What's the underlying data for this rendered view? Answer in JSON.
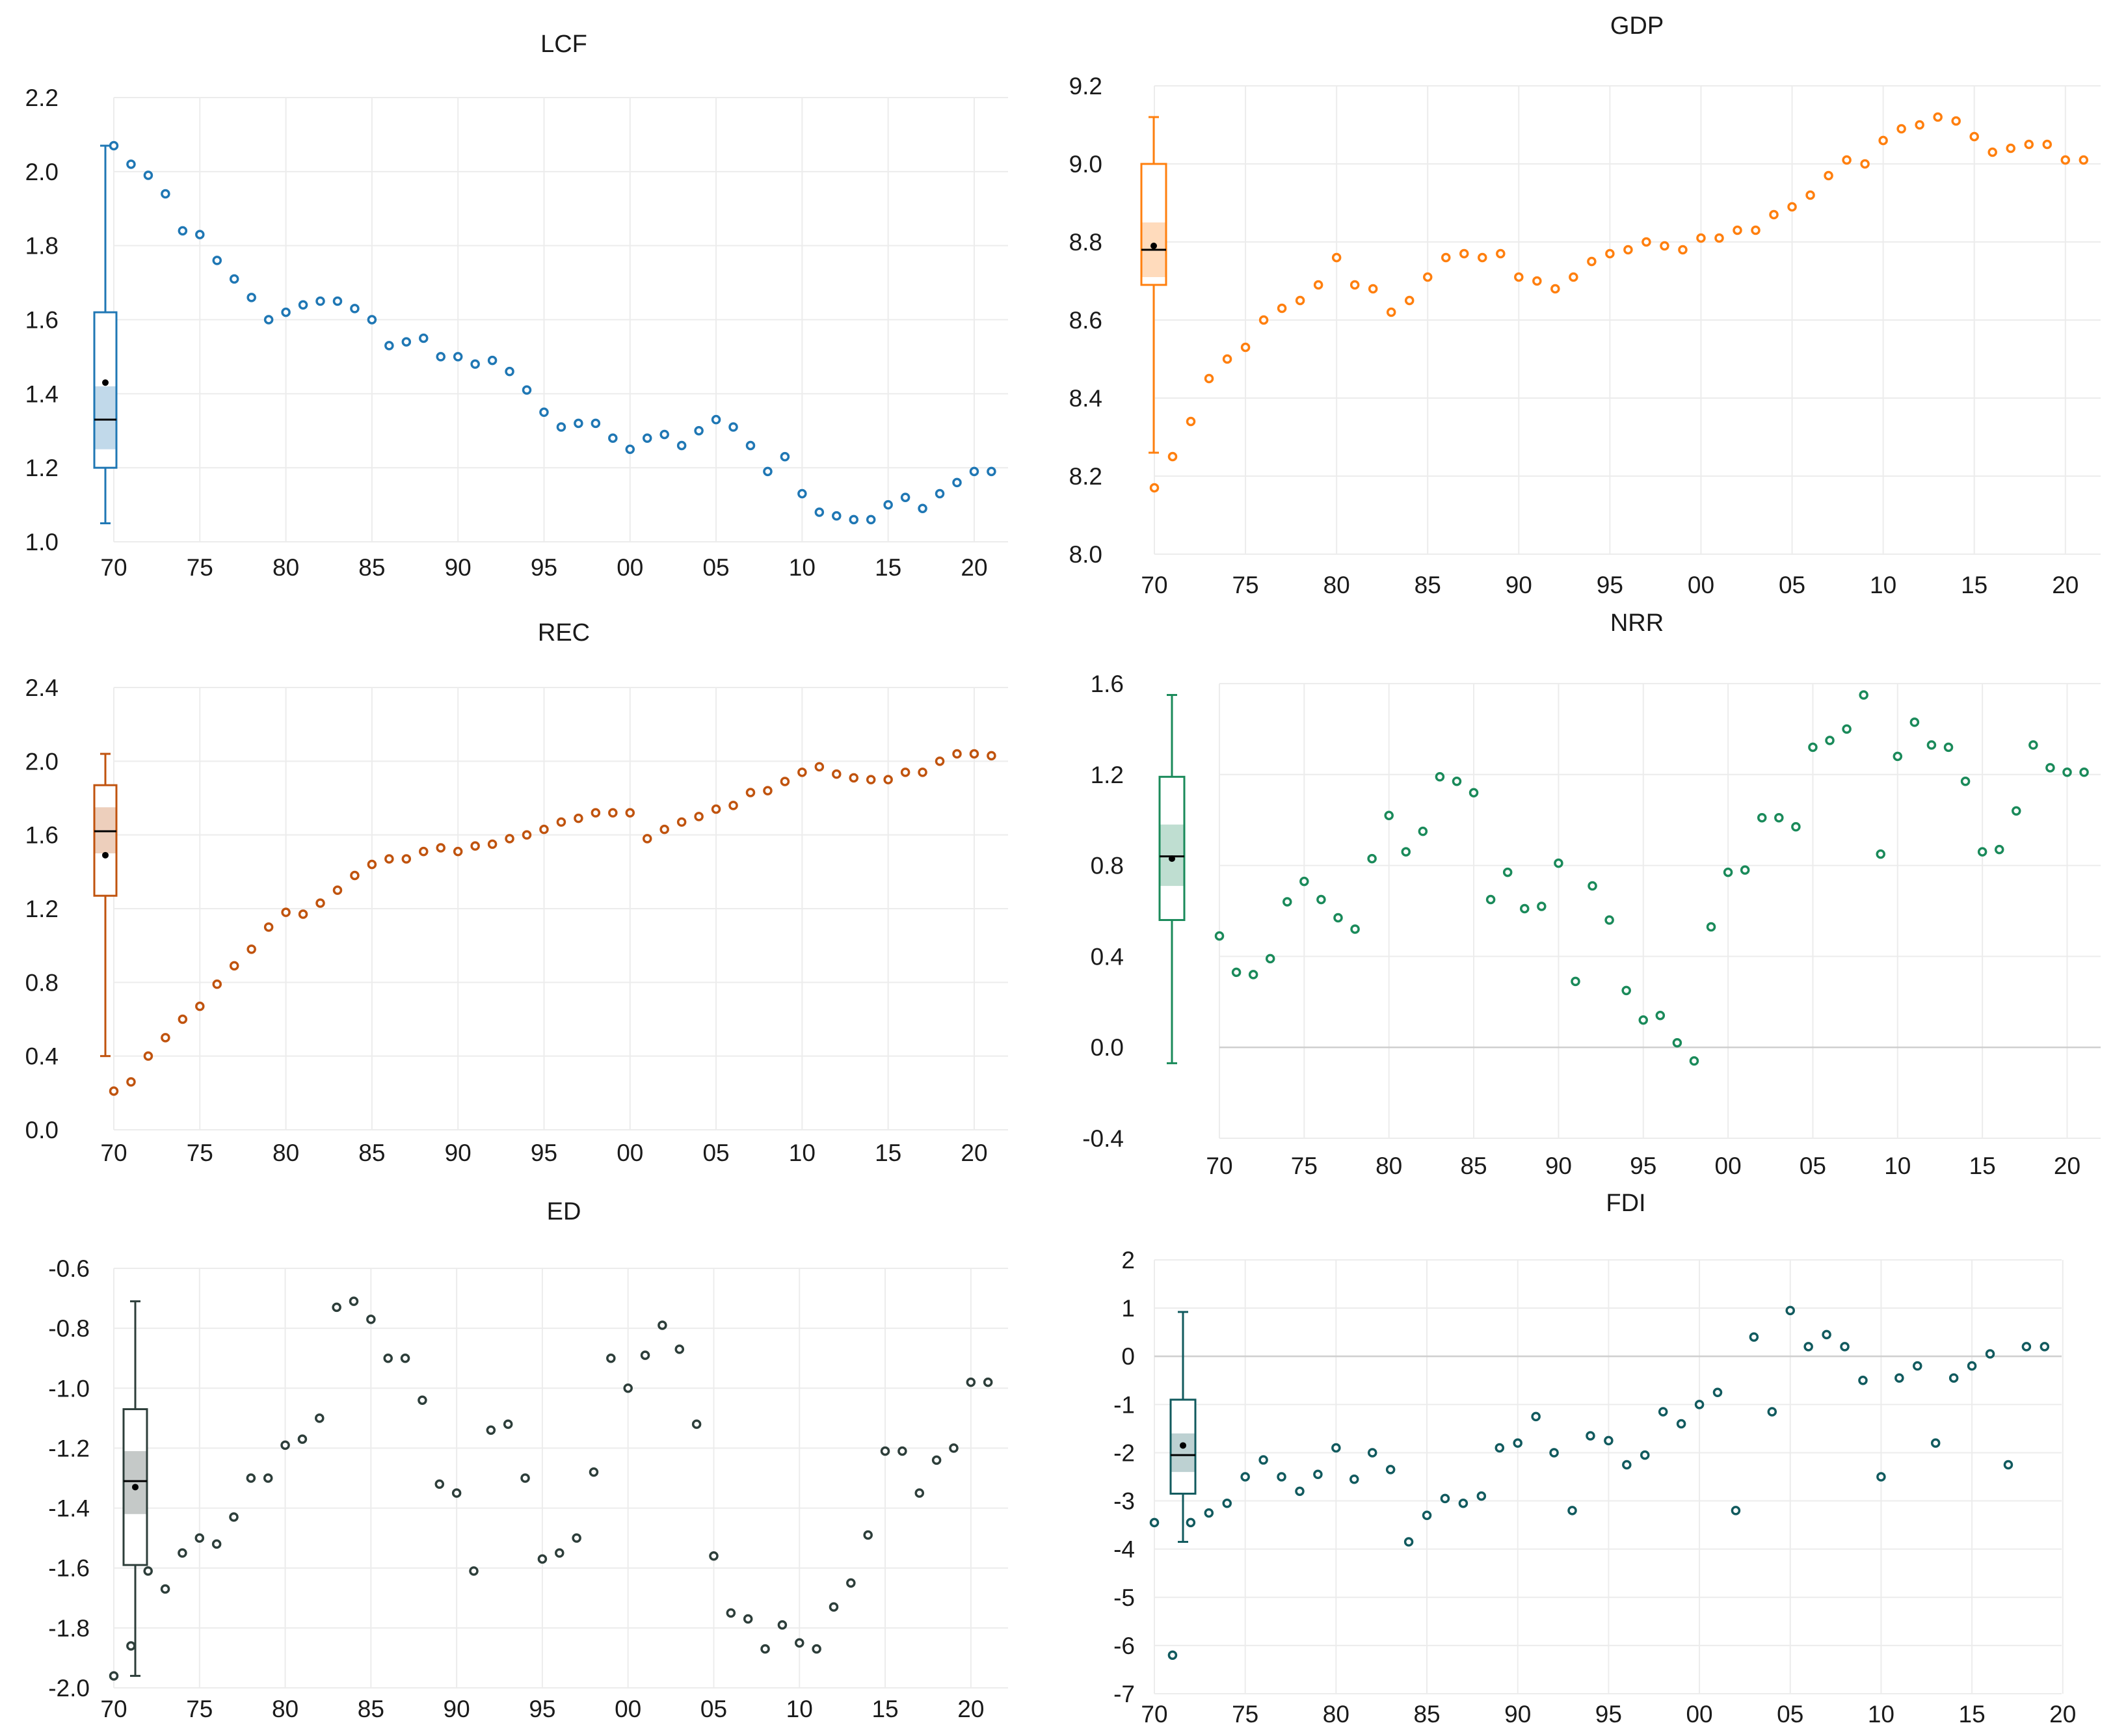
{
  "chart_data": [
    {
      "type": "scatter",
      "title": "LCF",
      "color": "#1f77b4",
      "ylim": [
        1.0,
        2.2
      ],
      "yticks": [
        "1.0",
        "1.2",
        "1.4",
        "1.6",
        "1.8",
        "2.0",
        "2.2"
      ],
      "xticks": [
        "70",
        "75",
        "80",
        "85",
        "90",
        "95",
        "00",
        "05",
        "10",
        "15",
        "20"
      ],
      "zero_line": false,
      "box": {
        "min": 1.05,
        "q1": 1.2,
        "median": 1.33,
        "q3": 1.62,
        "max": 2.07,
        "mean": 1.43,
        "ci": [
          1.25,
          1.42
        ]
      },
      "x": [
        1970,
        1971,
        1972,
        1973,
        1974,
        1975,
        1976,
        1977,
        1978,
        1979,
        1980,
        1981,
        1982,
        1983,
        1984,
        1985,
        1986,
        1987,
        1988,
        1989,
        1990,
        1991,
        1992,
        1993,
        1994,
        1995,
        1996,
        1997,
        1998,
        1999,
        2000,
        2001,
        2002,
        2003,
        2004,
        2005,
        2006,
        2007,
        2008,
        2009,
        2010,
        2011,
        2012,
        2013,
        2014,
        2015,
        2016,
        2017,
        2018,
        2019,
        2020,
        2021
      ],
      "y": [
        2.07,
        2.02,
        1.99,
        1.94,
        1.84,
        1.83,
        1.76,
        1.71,
        1.66,
        1.6,
        1.62,
        1.64,
        1.65,
        1.65,
        1.63,
        1.6,
        1.53,
        1.54,
        1.55,
        1.5,
        1.5,
        1.48,
        1.49,
        1.46,
        1.41,
        1.35,
        1.31,
        1.32,
        1.32,
        1.28,
        1.25,
        1.28,
        1.29,
        1.26,
        1.3,
        1.33,
        1.31,
        1.26,
        1.19,
        1.23,
        1.13,
        1.08,
        1.07,
        1.06,
        1.06,
        1.1,
        1.12,
        1.09,
        1.13,
        1.16,
        1.19,
        1.19
      ]
    },
    {
      "type": "scatter",
      "title": "GDP",
      "color": "#ff7f0e",
      "ylim": [
        8.0,
        9.2
      ],
      "yticks": [
        "8.0",
        "8.2",
        "8.4",
        "8.6",
        "8.8",
        "9.0",
        "9.2"
      ],
      "xticks": [
        "70",
        "75",
        "80",
        "85",
        "90",
        "95",
        "00",
        "05",
        "10",
        "15",
        "20"
      ],
      "zero_line": false,
      "box": {
        "min": 8.26,
        "q1": 8.69,
        "median": 8.78,
        "q3": 9.0,
        "max": 9.12,
        "mean": 8.79,
        "ci": [
          8.71,
          8.85
        ]
      },
      "x": [
        1970,
        1971,
        1972,
        1973,
        1974,
        1975,
        1976,
        1977,
        1978,
        1979,
        1980,
        1981,
        1982,
        1983,
        1984,
        1985,
        1986,
        1987,
        1988,
        1989,
        1990,
        1991,
        1992,
        1993,
        1994,
        1995,
        1996,
        1997,
        1998,
        1999,
        2000,
        2001,
        2002,
        2003,
        2004,
        2005,
        2006,
        2007,
        2008,
        2009,
        2010,
        2011,
        2012,
        2013,
        2014,
        2015,
        2016,
        2017,
        2018,
        2019,
        2020,
        2021
      ],
      "y": [
        8.17,
        8.25,
        8.34,
        8.45,
        8.5,
        8.53,
        8.6,
        8.63,
        8.65,
        8.69,
        8.76,
        8.69,
        8.68,
        8.62,
        8.65,
        8.71,
        8.76,
        8.77,
        8.76,
        8.77,
        8.71,
        8.7,
        8.68,
        8.71,
        8.75,
        8.77,
        8.78,
        8.8,
        8.79,
        8.78,
        8.81,
        8.81,
        8.83,
        8.83,
        8.87,
        8.89,
        8.92,
        8.97,
        9.01,
        9.0,
        9.06,
        9.09,
        9.1,
        9.12,
        9.11,
        9.07,
        9.03,
        9.04,
        9.05,
        9.05,
        9.01,
        9.01
      ]
    },
    {
      "type": "scatter",
      "title": "REC",
      "color": "#c0530e",
      "ylim": [
        0.0,
        2.4
      ],
      "yticks": [
        "0.0",
        "0.4",
        "0.8",
        "1.2",
        "1.6",
        "2.0",
        "2.4"
      ],
      "xticks": [
        "70",
        "75",
        "80",
        "85",
        "90",
        "95",
        "00",
        "05",
        "10",
        "15",
        "20"
      ],
      "zero_line": false,
      "box": {
        "min": 0.4,
        "q1": 1.27,
        "median": 1.62,
        "q3": 1.87,
        "max": 2.04,
        "mean": 1.49,
        "ci": [
          1.5,
          1.75
        ]
      },
      "x": [
        1970,
        1971,
        1972,
        1973,
        1974,
        1975,
        1976,
        1977,
        1978,
        1979,
        1980,
        1981,
        1982,
        1983,
        1984,
        1985,
        1986,
        1987,
        1988,
        1989,
        1990,
        1991,
        1992,
        1993,
        1994,
        1995,
        1996,
        1997,
        1998,
        1999,
        2000,
        2001,
        2002,
        2003,
        2004,
        2005,
        2006,
        2007,
        2008,
        2009,
        2010,
        2011,
        2012,
        2013,
        2014,
        2015,
        2016,
        2017,
        2018,
        2019,
        2020,
        2021
      ],
      "y": [
        0.21,
        0.26,
        0.4,
        0.5,
        0.6,
        0.67,
        0.79,
        0.89,
        0.98,
        1.1,
        1.18,
        1.17,
        1.23,
        1.3,
        1.38,
        1.44,
        1.47,
        1.47,
        1.51,
        1.53,
        1.51,
        1.54,
        1.55,
        1.58,
        1.6,
        1.63,
        1.67,
        1.69,
        1.72,
        1.72,
        1.72,
        1.58,
        1.63,
        1.67,
        1.7,
        1.74,
        1.76,
        1.83,
        1.84,
        1.89,
        1.94,
        1.97,
        1.93,
        1.91,
        1.9,
        1.9,
        1.94,
        1.94,
        2.0,
        2.04,
        2.04,
        2.03
      ]
    },
    {
      "type": "scatter",
      "title": "NRR",
      "color": "#1a8a5a",
      "ylim": [
        -0.4,
        1.6
      ],
      "yticks": [
        "-0.4",
        "0.0",
        "0.4",
        "0.8",
        "1.2",
        "1.6"
      ],
      "xticks": [
        "70",
        "75",
        "80",
        "85",
        "90",
        "95",
        "00",
        "05",
        "10",
        "15",
        "20"
      ],
      "zero_line": true,
      "box": {
        "min": -0.07,
        "q1": 0.56,
        "median": 0.84,
        "q3": 1.19,
        "max": 1.55,
        "mean": 0.83,
        "ci": [
          0.71,
          0.98
        ]
      },
      "x": [
        1970,
        1971,
        1972,
        1973,
        1974,
        1975,
        1976,
        1977,
        1978,
        1979,
        1980,
        1981,
        1982,
        1983,
        1984,
        1985,
        1986,
        1987,
        1988,
        1989,
        1990,
        1991,
        1992,
        1993,
        1994,
        1995,
        1996,
        1997,
        1998,
        1999,
        2000,
        2001,
        2002,
        2003,
        2004,
        2005,
        2006,
        2007,
        2008,
        2009,
        2010,
        2011,
        2012,
        2013,
        2014,
        2015,
        2016,
        2017,
        2018,
        2019,
        2020,
        2021
      ],
      "y": [
        0.49,
        0.33,
        0.32,
        0.39,
        0.64,
        0.73,
        0.65,
        0.57,
        0.52,
        0.83,
        1.02,
        0.86,
        0.95,
        1.19,
        1.17,
        1.12,
        0.65,
        0.77,
        0.61,
        0.62,
        0.81,
        0.29,
        0.71,
        0.56,
        0.25,
        0.12,
        0.14,
        0.02,
        -0.06,
        0.53,
        0.77,
        0.78,
        1.01,
        1.01,
        0.97,
        1.32,
        1.35,
        1.4,
        1.55,
        0.85,
        1.28,
        1.43,
        1.33,
        1.32,
        1.17,
        0.86,
        0.87,
        1.04,
        1.33,
        1.23,
        1.21,
        1.21
      ]
    },
    {
      "type": "scatter",
      "title": "ED",
      "color": "#2d3e3a",
      "ylim": [
        -2.0,
        -0.6
      ],
      "yticks": [
        "-2.0",
        "-1.8",
        "-1.6",
        "-1.4",
        "-1.2",
        "-1.0",
        "-0.8",
        "-0.6"
      ],
      "xticks": [
        "70",
        "75",
        "80",
        "85",
        "90",
        "95",
        "00",
        "05",
        "10",
        "15",
        "20"
      ],
      "zero_line": false,
      "box": {
        "min": -1.96,
        "q1": -1.59,
        "median": -1.31,
        "q3": -1.07,
        "max": -0.71,
        "mean": -1.33,
        "ci": [
          -1.42,
          -1.21
        ]
      },
      "x": [
        1970,
        1971,
        1972,
        1973,
        1974,
        1975,
        1976,
        1977,
        1978,
        1979,
        1980,
        1981,
        1982,
        1983,
        1984,
        1985,
        1986,
        1987,
        1988,
        1989,
        1990,
        1991,
        1992,
        1993,
        1994,
        1995,
        1996,
        1997,
        1998,
        1999,
        2000,
        2001,
        2002,
        2003,
        2004,
        2005,
        2006,
        2007,
        2008,
        2009,
        2010,
        2011,
        2012,
        2013,
        2014,
        2015,
        2016,
        2017,
        2018,
        2019,
        2020,
        2021
      ],
      "y": [
        -1.96,
        -1.86,
        -1.61,
        -1.67,
        -1.55,
        -1.5,
        -1.52,
        -1.43,
        -1.3,
        -1.3,
        -1.19,
        -1.17,
        -1.1,
        -0.73,
        -0.71,
        -0.77,
        -0.9,
        -0.9,
        -1.04,
        -1.32,
        -1.35,
        -1.61,
        -1.14,
        -1.12,
        -1.3,
        -1.57,
        -1.55,
        -1.5,
        -1.28,
        -0.9,
        -1.0,
        -0.89,
        -0.79,
        -0.87,
        -1.12,
        -1.56,
        -1.75,
        -1.77,
        -1.87,
        -1.79,
        -1.85,
        -1.87,
        -1.73,
        -1.65,
        -1.49,
        -1.21,
        -1.21,
        -1.35,
        -1.24,
        -1.2,
        -0.98,
        -0.98
      ]
    },
    {
      "type": "scatter",
      "title": "FDI",
      "color": "#115a5e",
      "ylim": [
        -7,
        2
      ],
      "yticks": [
        "-7",
        "-6",
        "-5",
        "-4",
        "-3",
        "-2",
        "-1",
        "0",
        "1",
        "2"
      ],
      "xticks": [
        "70",
        "75",
        "80",
        "85",
        "90",
        "95",
        "00",
        "05",
        "10",
        "15",
        "20"
      ],
      "zero_line": true,
      "box": {
        "min": -3.85,
        "q1": -2.85,
        "median": -2.05,
        "q3": -0.9,
        "max": 0.92,
        "mean": -1.85,
        "ci": [
          -2.4,
          -1.6
        ]
      },
      "x": [
        1970,
        1971,
        1972,
        1973,
        1974,
        1975,
        1976,
        1977,
        1978,
        1979,
        1980,
        1981,
        1982,
        1983,
        1984,
        1985,
        1986,
        1987,
        1988,
        1989,
        1990,
        1991,
        1992,
        1993,
        1994,
        1995,
        1996,
        1997,
        1998,
        1999,
        2000,
        2001,
        2002,
        2003,
        2004,
        2005,
        2006,
        2007,
        2008,
        2009,
        2010,
        2011,
        2012,
        2013,
        2014,
        2015,
        2016,
        2017,
        2018,
        2019
      ],
      "y": [
        -3.45,
        -6.2,
        -3.45,
        -3.25,
        -3.05,
        -2.5,
        -2.15,
        -2.5,
        -2.8,
        -2.45,
        -1.9,
        -2.55,
        -2.0,
        -2.35,
        -3.85,
        -3.3,
        -2.95,
        -3.05,
        -2.9,
        -1.9,
        -1.8,
        -1.25,
        -2.0,
        -3.2,
        -1.65,
        -1.75,
        -2.25,
        -2.05,
        -1.15,
        -1.4,
        -1.0,
        -0.75,
        -3.2,
        0.4,
        -1.15,
        0.95,
        0.2,
        0.45,
        0.2,
        -0.5,
        -2.5,
        -0.45,
        -0.2,
        -1.8,
        -0.45,
        -0.2,
        0.05,
        -2.25,
        0.2,
        0.2
      ]
    }
  ]
}
